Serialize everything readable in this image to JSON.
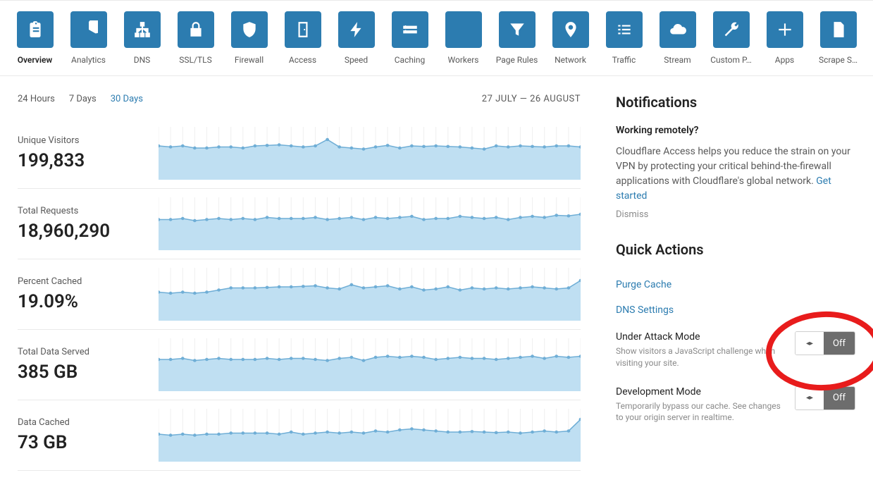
{
  "colors": {
    "brand": "#2c7cb0",
    "chartFill": "#bfdff2",
    "chartStroke": "#6faed6",
    "chartMarker": "#6faed6",
    "text": "#333333",
    "textMuted": "#595959",
    "textLight": "#8a8a8a",
    "border": "#eaeaea",
    "toggleOff": "#6d6d6d",
    "annotation": "#e81c1c"
  },
  "nav": [
    {
      "id": "overview",
      "label": "Overview",
      "icon": "clipboard",
      "active": true
    },
    {
      "id": "analytics",
      "label": "Analytics",
      "icon": "pie"
    },
    {
      "id": "dns",
      "label": "DNS",
      "icon": "sitemap"
    },
    {
      "id": "ssl",
      "label": "SSL/TLS",
      "icon": "lock"
    },
    {
      "id": "firewall",
      "label": "Firewall",
      "icon": "shield"
    },
    {
      "id": "access",
      "label": "Access",
      "icon": "door"
    },
    {
      "id": "speed",
      "label": "Speed",
      "icon": "bolt"
    },
    {
      "id": "caching",
      "label": "Caching",
      "icon": "drive"
    },
    {
      "id": "workers",
      "label": "Workers",
      "icon": "workers"
    },
    {
      "id": "pagerules",
      "label": "Page Rules",
      "icon": "funnel"
    },
    {
      "id": "network",
      "label": "Network",
      "icon": "pin"
    },
    {
      "id": "traffic",
      "label": "Traffic",
      "icon": "list"
    },
    {
      "id": "stream",
      "label": "Stream",
      "icon": "cloud"
    },
    {
      "id": "custom",
      "label": "Custom P…",
      "icon": "wrench"
    },
    {
      "id": "apps",
      "label": "Apps",
      "icon": "plus"
    },
    {
      "id": "scrape",
      "label": "Scrape S…",
      "icon": "doc"
    }
  ],
  "rangeTabs": [
    "24 Hours",
    "7 Days",
    "30 Days"
  ],
  "rangeActive": "30 Days",
  "dateRange": "27 JULY — 26 AUGUST",
  "stats": [
    {
      "id": "unique",
      "label": "Unique Visitors",
      "value": "199,833",
      "chart": {
        "ylim": [
          0,
          100
        ],
        "values": [
          64,
          62,
          64,
          60,
          60,
          62,
          62,
          60,
          64,
          65,
          66,
          64,
          62,
          64,
          76,
          62,
          60,
          58,
          62,
          65,
          60,
          64,
          63,
          64,
          63,
          62,
          60,
          58,
          64,
          62,
          64,
          63,
          62,
          64,
          64,
          62
        ]
      }
    },
    {
      "id": "requests",
      "label": "Total Requests",
      "value": "18,960,290",
      "chart": {
        "ylim": [
          0,
          100
        ],
        "values": [
          58,
          58,
          60,
          56,
          58,
          60,
          58,
          60,
          58,
          62,
          60,
          60,
          60,
          62,
          58,
          60,
          62,
          58,
          62,
          60,
          62,
          64,
          58,
          60,
          60,
          64,
          62,
          60,
          62,
          58,
          62,
          64,
          62,
          66,
          65,
          68
        ]
      }
    },
    {
      "id": "cached",
      "label": "Percent Cached",
      "value": "19.09%",
      "chart": {
        "ylim": [
          0,
          100
        ],
        "values": [
          54,
          52,
          54,
          52,
          54,
          58,
          62,
          62,
          62,
          63,
          64,
          64,
          65,
          66,
          62,
          60,
          68,
          62,
          64,
          66,
          60,
          64,
          58,
          60,
          64,
          58,
          62,
          60,
          62,
          60,
          62,
          64,
          62,
          60,
          62,
          76
        ]
      }
    },
    {
      "id": "served",
      "label": "Total Data Served",
      "value": "385 GB",
      "chart": {
        "ylim": [
          0,
          100
        ],
        "values": [
          60,
          60,
          62,
          58,
          60,
          62,
          60,
          60,
          60,
          62,
          60,
          62,
          62,
          60,
          58,
          62,
          64,
          58,
          64,
          66,
          64,
          66,
          64,
          60,
          62,
          64,
          62,
          62,
          60,
          62,
          64,
          66,
          62,
          66,
          64,
          66
        ]
      }
    },
    {
      "id": "datacached",
      "label": "Data Cached",
      "value": "73 GB",
      "chart": {
        "ylim": [
          0,
          100
        ],
        "values": [
          52,
          50,
          52,
          50,
          52,
          52,
          54,
          54,
          54,
          54,
          52,
          56,
          52,
          54,
          56,
          54,
          56,
          54,
          58,
          56,
          60,
          62,
          60,
          58,
          56,
          56,
          57,
          56,
          55,
          56,
          54,
          56,
          58,
          56,
          58,
          80
        ]
      }
    }
  ],
  "chartStyle": {
    "markerRadius": 2.2,
    "lineWidth": 1.5,
    "type": "area"
  },
  "notifications": {
    "heading": "Notifications",
    "title": "Working remotely?",
    "body": "Cloudflare Access helps you reduce the strain on your VPN by protecting your critical behind-the-firewall applications with Cloudflare's global network. ",
    "cta": "Get started",
    "dismiss": "Dismiss"
  },
  "quickActions": {
    "heading": "Quick Actions",
    "links": [
      "Purge Cache",
      "DNS Settings"
    ],
    "toggles": [
      {
        "id": "under-attack",
        "label": "Under Attack Mode",
        "desc": "Show visitors a JavaScript challenge when visiting your site.",
        "state": "Off",
        "highlighted": true
      },
      {
        "id": "dev-mode",
        "label": "Development Mode",
        "desc": "Temporarily bypass our cache. See changes to your origin server in realtime.",
        "state": "Off",
        "highlighted": false
      }
    ]
  }
}
